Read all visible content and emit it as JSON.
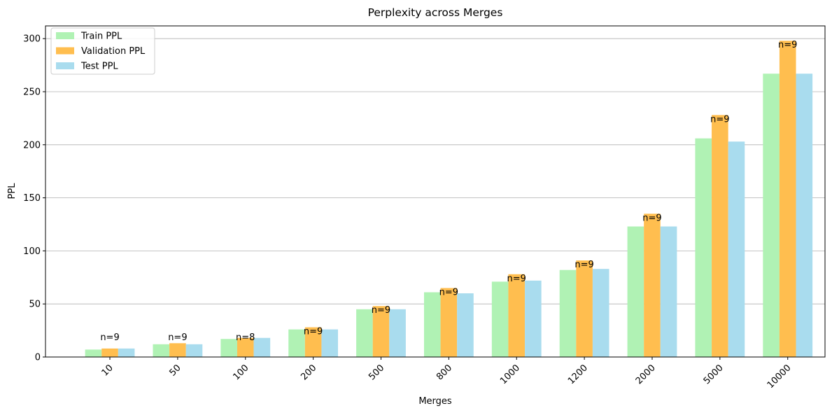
{
  "chart_data": {
    "type": "bar",
    "title": "Perplexity across Merges",
    "xlabel": "Merges",
    "ylabel": "PPL",
    "categories": [
      "10",
      "50",
      "100",
      "200",
      "500",
      "800",
      "1000",
      "1200",
      "2000",
      "5000",
      "10000"
    ],
    "series": [
      {
        "name": "Train PPL",
        "color": "#b0f2b4",
        "values": [
          7,
          12,
          17,
          26,
          45,
          61,
          71,
          82,
          123,
          206,
          267
        ]
      },
      {
        "name": "Validation PPL",
        "color": "#ffbe4f",
        "values": [
          8,
          13,
          18,
          28,
          48,
          65,
          78,
          91,
          135,
          228,
          298
        ]
      },
      {
        "name": "Test PPL",
        "color": "#a9dcee",
        "values": [
          8,
          12,
          18,
          26,
          45,
          60,
          72,
          83,
          123,
          203,
          267
        ]
      }
    ],
    "annotations": [
      "n=9",
      "n=9",
      "n=8",
      "n=9",
      "n=9",
      "n=9",
      "n=9",
      "n=9",
      "n=9",
      "n=9",
      "n=9"
    ],
    "ylim": [
      0,
      312
    ],
    "yticks": [
      0,
      50,
      100,
      150,
      200,
      250,
      300
    ],
    "grid": "y",
    "legend_position": "top-left"
  }
}
